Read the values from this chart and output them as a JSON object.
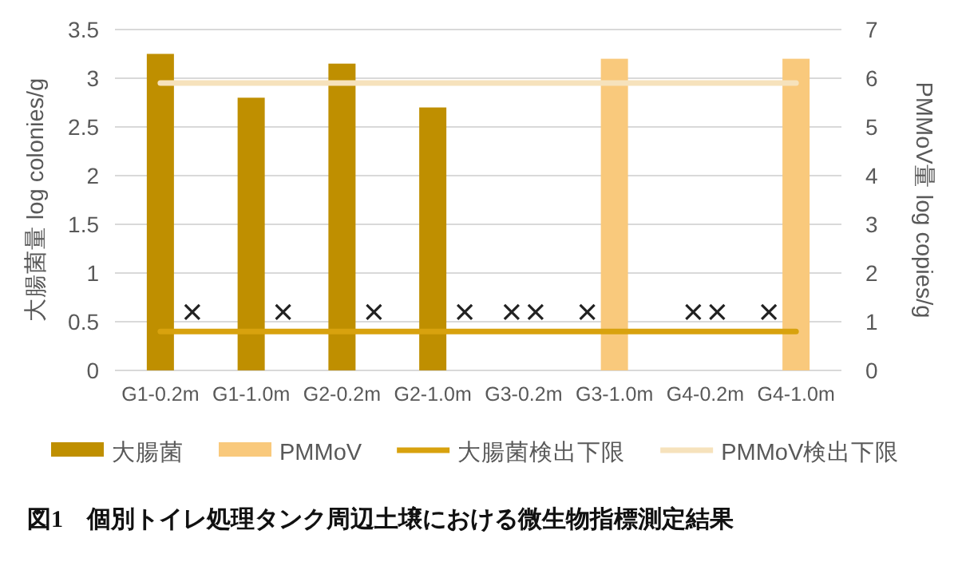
{
  "chart_data": {
    "type": "bar",
    "title": "図1　個別トイレ処理タンク周辺土壌における微生物指標測定結果",
    "ylabel": "大腸菌量 log colonies/g",
    "y2label": "PMMoV量 log copies/g",
    "categories": [
      "G1-0.2m",
      "G1-1.0m",
      "G2-0.2m",
      "G2-1.0m",
      "G3-0.2m",
      "G3-1.0m",
      "G4-0.2m",
      "G4-1.0m"
    ],
    "series": [
      {
        "name": "大腸菌",
        "color": "#bf8f00",
        "values": [
          3.25,
          2.8,
          3.15,
          2.7,
          null,
          null,
          null,
          null
        ]
      },
      {
        "name": "PMMoV",
        "axis": "y2",
        "color": "#f9c97c",
        "values": [
          null,
          null,
          null,
          null,
          null,
          6.4,
          null,
          6.4
        ]
      },
      {
        "name": "大腸菌検出下限",
        "type": "line",
        "color": "#d8a20e",
        "values": [
          0.4,
          0.4,
          0.4,
          0.4,
          0.4,
          0.4,
          0.4,
          0.4
        ]
      },
      {
        "name": "PMMoV検出下限",
        "type": "line",
        "axis": "y2",
        "color": "#f6e2bc",
        "values": [
          5.9,
          5.9,
          5.9,
          5.9,
          5.9,
          5.9,
          5.9,
          5.9
        ]
      },
      {
        "type": "scatter",
        "marker": "cross",
        "color": "#222222",
        "x": [
          "G1-0.2m",
          "G1-1.0m",
          "G2-0.2m",
          "G2-1.0m",
          "G3-0.2m",
          "G3-0.2m",
          "G3-1.0m",
          "G4-0.2m",
          "G4-0.2m",
          "G4-1.0m"
        ],
        "values": [
          0.6,
          0.6,
          0.6,
          0.6,
          0.6,
          0.6,
          0.6,
          0.6,
          0.6,
          0.6
        ]
      }
    ],
    "ylim": [
      0,
      3.5
    ],
    "yticks": [
      0,
      0.5,
      1,
      1.5,
      2,
      2.5,
      3,
      3.5
    ],
    "y2lim": [
      0,
      7
    ],
    "y2ticks": [
      0,
      1,
      2,
      3,
      4,
      5,
      6,
      7
    ],
    "grid": "y",
    "legend": "bottom"
  }
}
